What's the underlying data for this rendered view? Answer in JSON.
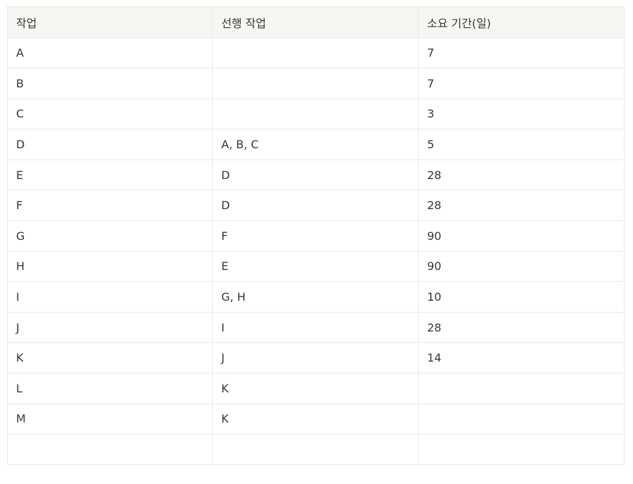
{
  "table": {
    "headers": [
      "작업",
      "선행 작업",
      "소요 기간(일)"
    ],
    "rows": [
      [
        "A",
        "",
        "7"
      ],
      [
        "B",
        "",
        "7"
      ],
      [
        "C",
        "",
        "3"
      ],
      [
        "D",
        "A, B, C",
        "5"
      ],
      [
        "E",
        "D",
        "28"
      ],
      [
        "F",
        "D",
        "28"
      ],
      [
        "G",
        "F",
        "90"
      ],
      [
        "H",
        "E",
        "90"
      ],
      [
        "I",
        "G, H",
        "10"
      ],
      [
        "J",
        "I",
        "28"
      ],
      [
        "K",
        "J",
        "14"
      ],
      [
        "L",
        "K",
        ""
      ],
      [
        "M",
        "K",
        ""
      ],
      [
        "",
        "",
        ""
      ]
    ]
  }
}
